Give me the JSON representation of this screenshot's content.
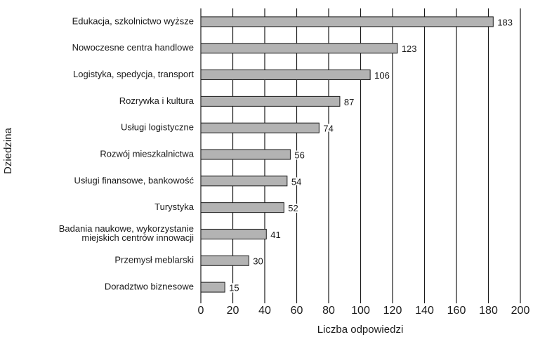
{
  "chart_data": {
    "type": "bar",
    "orientation": "horizontal",
    "x_label": "Liczba odpowiedzi",
    "y_label": "Dziedzina",
    "categories": [
      "Edukacja, szkolnictwo wyższe",
      "Nowoczesne centra handlowe",
      "Logistyka, spedycja, transport",
      "Rozrywka i kultura",
      "Usługi logistyczne",
      "Rozwój mieszkalnictwa",
      "Usługi finansowe, bankowość",
      "Turystyka",
      "Badania naukowe, wykorzystanie\nmiejskich centrów innowacji",
      "Przemysł meblarski",
      "Doradztwo biznesowe"
    ],
    "values": [
      183,
      123,
      106,
      87,
      74,
      56,
      54,
      52,
      41,
      30,
      15
    ],
    "color": "#b3b3b3",
    "xlim": [
      0,
      200
    ],
    "xticks": [
      0,
      20,
      40,
      60,
      80,
      100,
      120,
      140,
      160,
      180,
      200
    ],
    "grid": true
  }
}
